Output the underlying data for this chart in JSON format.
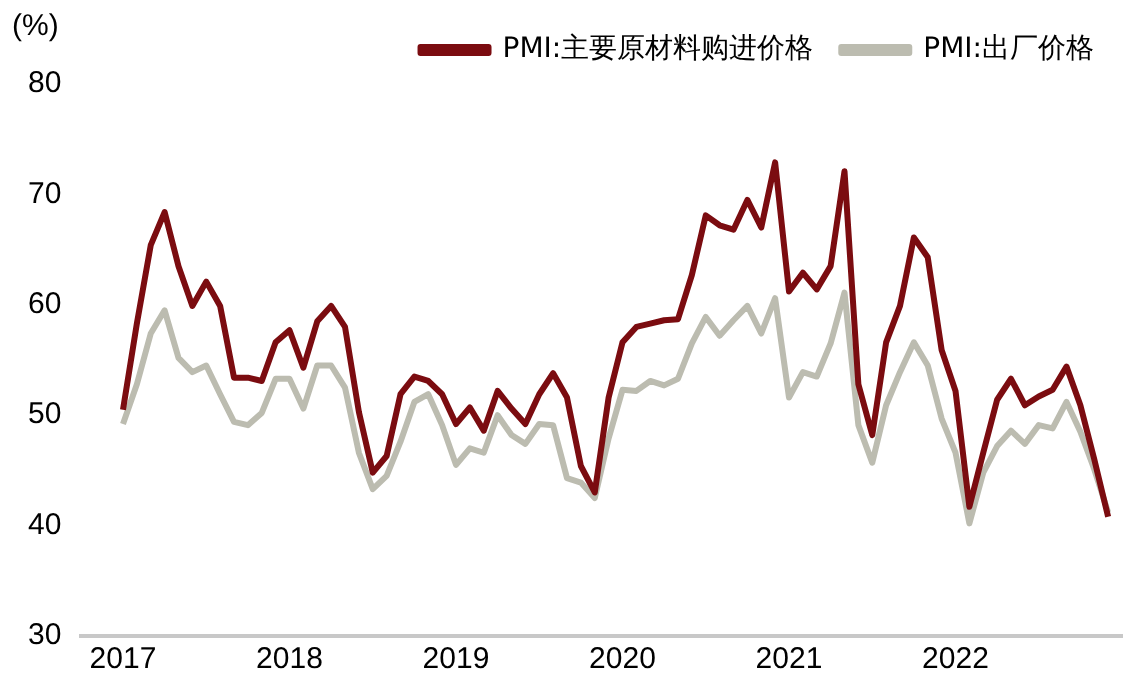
{
  "chart_data": {
    "type": "line",
    "ylabel": "(%)",
    "x": [
      "2017-01",
      "2017-02",
      "2017-03",
      "2017-04",
      "2017-05",
      "2017-06",
      "2017-07",
      "2017-08",
      "2017-09",
      "2017-10",
      "2017-11",
      "2017-12",
      "2018-01",
      "2018-02",
      "2018-03",
      "2018-04",
      "2018-05",
      "2018-06",
      "2018-07",
      "2018-08",
      "2018-09",
      "2018-10",
      "2018-11",
      "2018-12",
      "2019-01",
      "2019-02",
      "2019-03",
      "2019-04",
      "2019-05",
      "2019-06",
      "2019-07",
      "2019-08",
      "2019-09",
      "2019-10",
      "2019-11",
      "2019-12",
      "2020-01",
      "2020-02",
      "2020-03",
      "2020-04",
      "2020-05",
      "2020-06",
      "2020-07",
      "2020-08",
      "2020-09",
      "2020-10",
      "2020-11",
      "2020-12",
      "2021-01",
      "2021-02",
      "2021-03",
      "2021-04",
      "2021-05",
      "2021-06",
      "2021-07",
      "2021-08",
      "2021-09",
      "2021-10",
      "2021-11",
      "2021-12",
      "2022-01",
      "2022-02",
      "2022-03",
      "2022-04",
      "2022-05",
      "2022-06",
      "2022-07",
      "2022-08",
      "2022-09",
      "2022-10",
      "2022-11",
      "2022-12"
    ],
    "series": [
      {
        "name": "PMI:主要原材料购进价格",
        "color": "#7b0c10",
        "values": [
          50.5,
          58.3,
          65.4,
          68.4,
          63.5,
          59.9,
          62.1,
          59.9,
          53.4,
          53.4,
          53.1,
          56.6,
          57.7,
          54.3,
          58.5,
          59.9,
          58.0,
          50.3,
          44.8,
          46.3,
          51.9,
          53.5,
          53.1,
          51.9,
          49.2,
          50.7,
          48.6,
          52.2,
          50.6,
          49.2,
          51.9,
          53.8,
          51.6,
          45.4,
          43.0,
          51.6,
          56.6,
          58.0,
          58.3,
          58.6,
          58.7,
          62.7,
          68.1,
          67.2,
          66.8,
          69.5,
          67.0,
          72.9,
          61.2,
          62.9,
          61.4,
          63.5,
          72.1,
          52.8,
          48.2,
          56.6,
          59.9,
          66.1,
          64.3,
          55.9,
          52.2,
          41.7,
          46.6,
          51.4,
          53.3,
          50.9,
          51.7,
          52.3,
          54.4,
          50.9,
          46.0,
          40.8
        ]
      },
      {
        "name": "PMI:出厂价格",
        "color": "#bcbcb0",
        "values": [
          49.2,
          52.8,
          57.4,
          59.5,
          55.2,
          53.9,
          54.5,
          51.9,
          49.4,
          49.1,
          50.2,
          53.3,
          53.3,
          50.6,
          54.5,
          54.5,
          52.5,
          46.6,
          43.3,
          44.5,
          47.6,
          51.2,
          51.9,
          49.1,
          45.5,
          47.0,
          46.6,
          50.0,
          48.2,
          47.4,
          49.2,
          49.1,
          44.3,
          43.9,
          42.5,
          47.9,
          52.3,
          52.2,
          53.1,
          52.7,
          53.3,
          56.5,
          58.9,
          57.2,
          58.6,
          59.9,
          57.4,
          60.6,
          51.6,
          53.9,
          53.5,
          56.5,
          61.1,
          49.1,
          45.7,
          50.9,
          53.9,
          56.6,
          54.5,
          49.7,
          46.6,
          40.2,
          44.8,
          47.2,
          48.6,
          47.4,
          49.1,
          48.8,
          51.2,
          48.5,
          45.1,
          41.2
        ]
      }
    ],
    "xlim": [
      "2016-10",
      "2023-01"
    ],
    "xticks": [
      {
        "value": "2017",
        "label": "2017"
      },
      {
        "value": "2018",
        "label": "2018"
      },
      {
        "value": "2019",
        "label": "2019"
      },
      {
        "value": "2020",
        "label": "2020"
      },
      {
        "value": "2021",
        "label": "2021"
      },
      {
        "value": "2022",
        "label": "2022"
      }
    ],
    "ylim": [
      30,
      80
    ],
    "yticks": [
      30,
      40,
      50,
      60,
      70,
      80
    ],
    "grid": false,
    "legend": "top",
    "marker": "none",
    "line_style": "solid"
  }
}
